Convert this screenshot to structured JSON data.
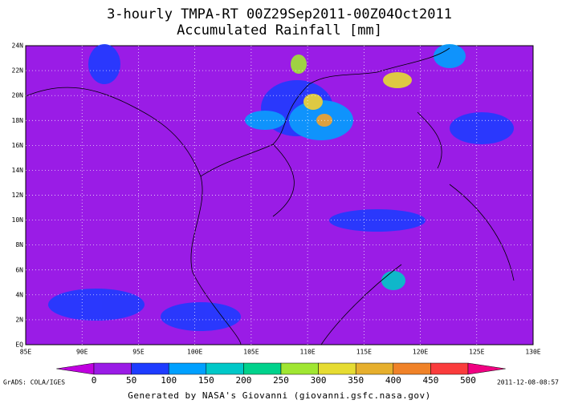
{
  "title": "3-hourly TMPA-RT 00Z29Sep2011-00Z04Oct2011",
  "subtitle": "Accumulated Rainfall [mm]",
  "lat_ticks": [
    "EQ",
    "2N",
    "4N",
    "6N",
    "8N",
    "10N",
    "12N",
    "14N",
    "16N",
    "18N",
    "20N",
    "22N",
    "24N"
  ],
  "lon_ticks": [
    "85E",
    "90E",
    "95E",
    "100E",
    "105E",
    "110E",
    "115E",
    "120E",
    "125E",
    "130E"
  ],
  "colorbar": {
    "ticks": [
      0,
      50,
      100,
      150,
      200,
      250,
      300,
      350,
      400,
      450,
      500
    ],
    "colors": [
      "#c000e0",
      "#9a1ce6",
      "#1e3cff",
      "#00a0ff",
      "#00c8c8",
      "#00d28c",
      "#a0e632",
      "#e6dc32",
      "#e6af2d",
      "#f08228",
      "#fa3c3c",
      "#f00082"
    ]
  },
  "credit": "GrADS: COLA/IGES",
  "timestamp": "2011-12-08-08:57",
  "footer": "Generated by NASA's Giovanni (giovanni.gsfc.nasa.gov)"
}
